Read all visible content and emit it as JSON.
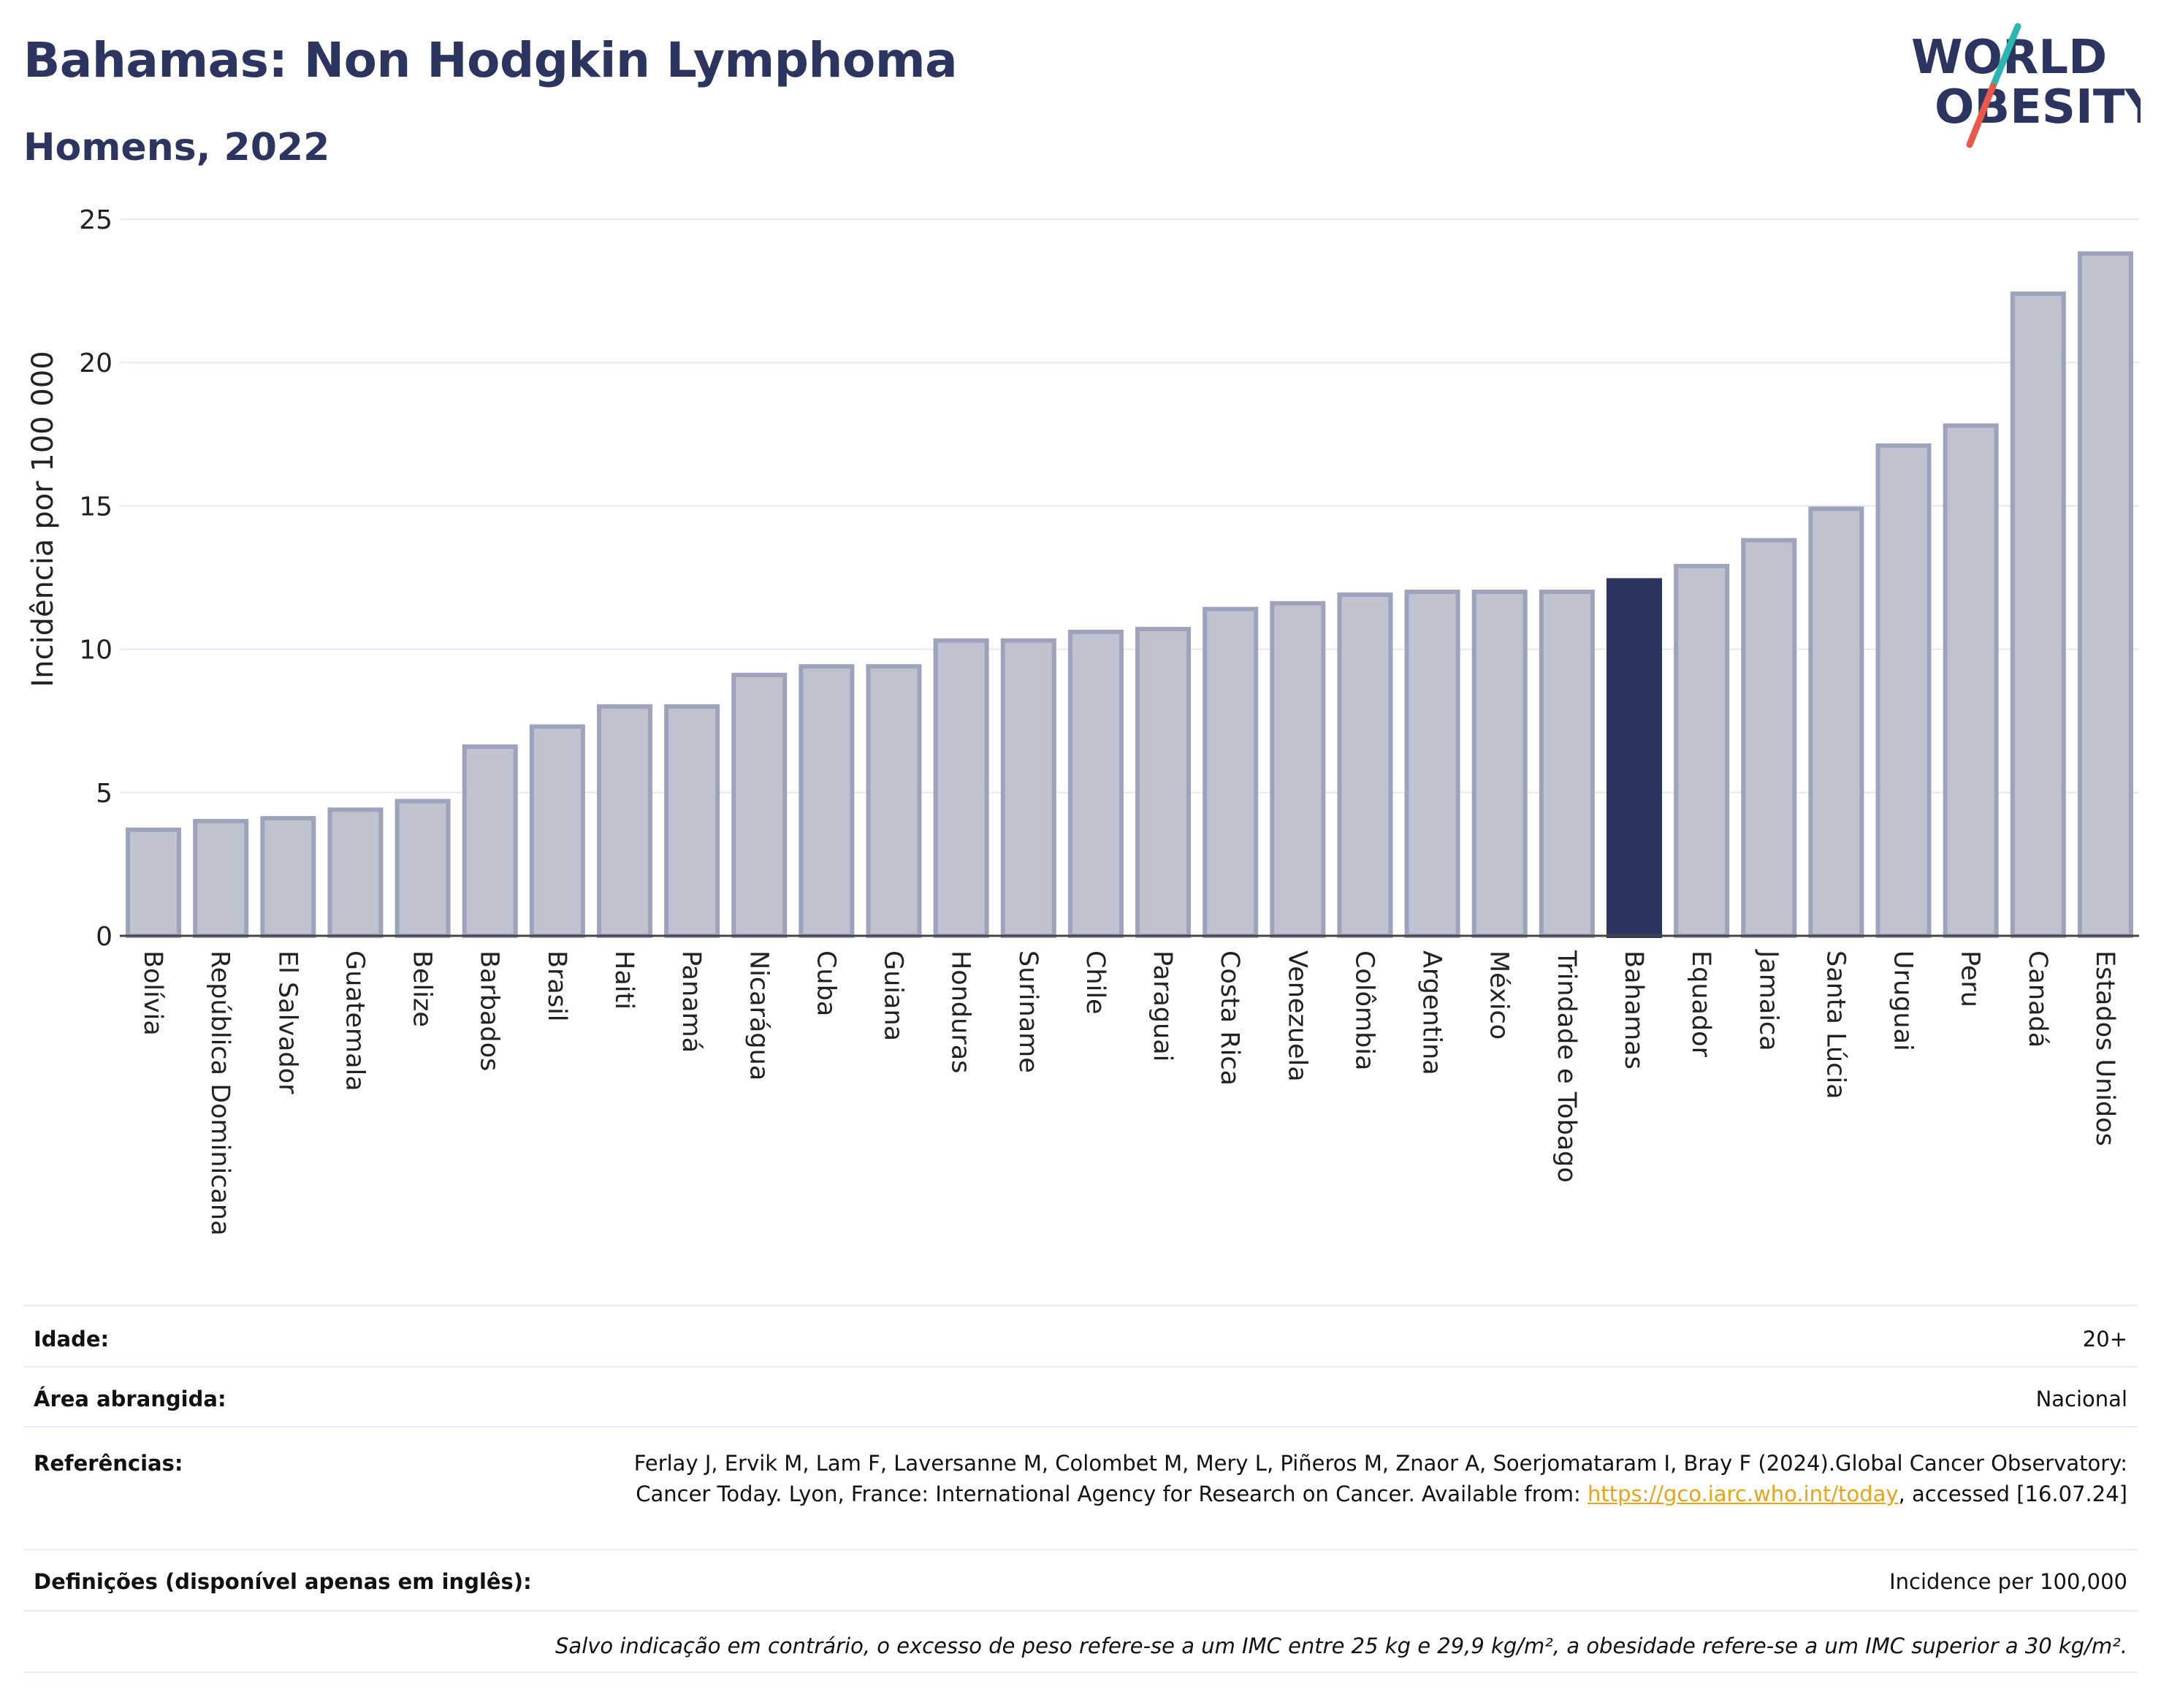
{
  "header": {
    "title": "Bahamas: Non Hodgkin Lymphoma",
    "subtitle": "Homens, 2022"
  },
  "logo": {
    "line1": "WORLD",
    "line2": "OBESITY",
    "colors": {
      "text": "#2b3560",
      "slash_teal": "#2bb6b0",
      "slash_red": "#e8594a"
    }
  },
  "chart_data": {
    "type": "bar",
    "ylabel": "Incidência por 100 000",
    "xlabel": "",
    "ylim": [
      0,
      25
    ],
    "yticks": [
      0,
      5,
      10,
      15,
      20,
      25
    ],
    "grid": true,
    "highlight": "Bahamas",
    "colors": {
      "bar": "#bfc3d0",
      "bar_edge": "#9ea3bb",
      "highlight": "#2b3560"
    },
    "categories": [
      "Bolívia",
      "República Dominicana",
      "El Salvador",
      "Guatemala",
      "Belize",
      "Barbados",
      "Brasil",
      "Haiti",
      "Panamá",
      "Nicarágua",
      "Cuba",
      "Guiana",
      "Honduras",
      "Suriname",
      "Chile",
      "Paraguai",
      "Costa Rica",
      "Venezuela",
      "Colômbia",
      "Argentina",
      "México",
      "Trindade e Tobago",
      "Bahamas",
      "Equador",
      "Jamaica",
      "Santa Lúcia",
      "Uruguai",
      "Peru",
      "Canadá",
      "Estados Unidos"
    ],
    "values": [
      3.7,
      4.0,
      4.1,
      4.4,
      4.7,
      6.6,
      7.3,
      8.0,
      8.0,
      9.1,
      9.4,
      9.4,
      10.3,
      10.3,
      10.6,
      10.7,
      11.4,
      11.6,
      11.9,
      12.0,
      12.0,
      12.0,
      12.4,
      12.9,
      13.8,
      14.9,
      17.1,
      17.8,
      22.4,
      23.8
    ]
  },
  "meta": {
    "age_label": "Idade:",
    "age_value": "20+",
    "area_label": "Área abrangida:",
    "area_value": "Nacional",
    "ref_label": "Referências:",
    "ref_text_1": "Ferlay J, Ervik M, Lam F, Laversanne M, Colombet M, Mery L, Piñeros M, Znaor A, Soerjomataram I, Bray F (2024).Global Cancer Observatory: Cancer Today. Lyon, France: International Agency for Research on Cancer. Available from: ",
    "ref_link": "https://gco.iarc.who.int/today",
    "ref_text_2": ", accessed [16.07.24]",
    "def_label": "Definições (disponível apenas em inglês):",
    "def_value": "Incidence per 100,000",
    "note": "Salvo indicação em contrário, o excesso de peso refere-se a um IMC entre 25 kg e 29,9 kg/m², a obesidade refere-se a um IMC superior a 30 kg/m²."
  }
}
